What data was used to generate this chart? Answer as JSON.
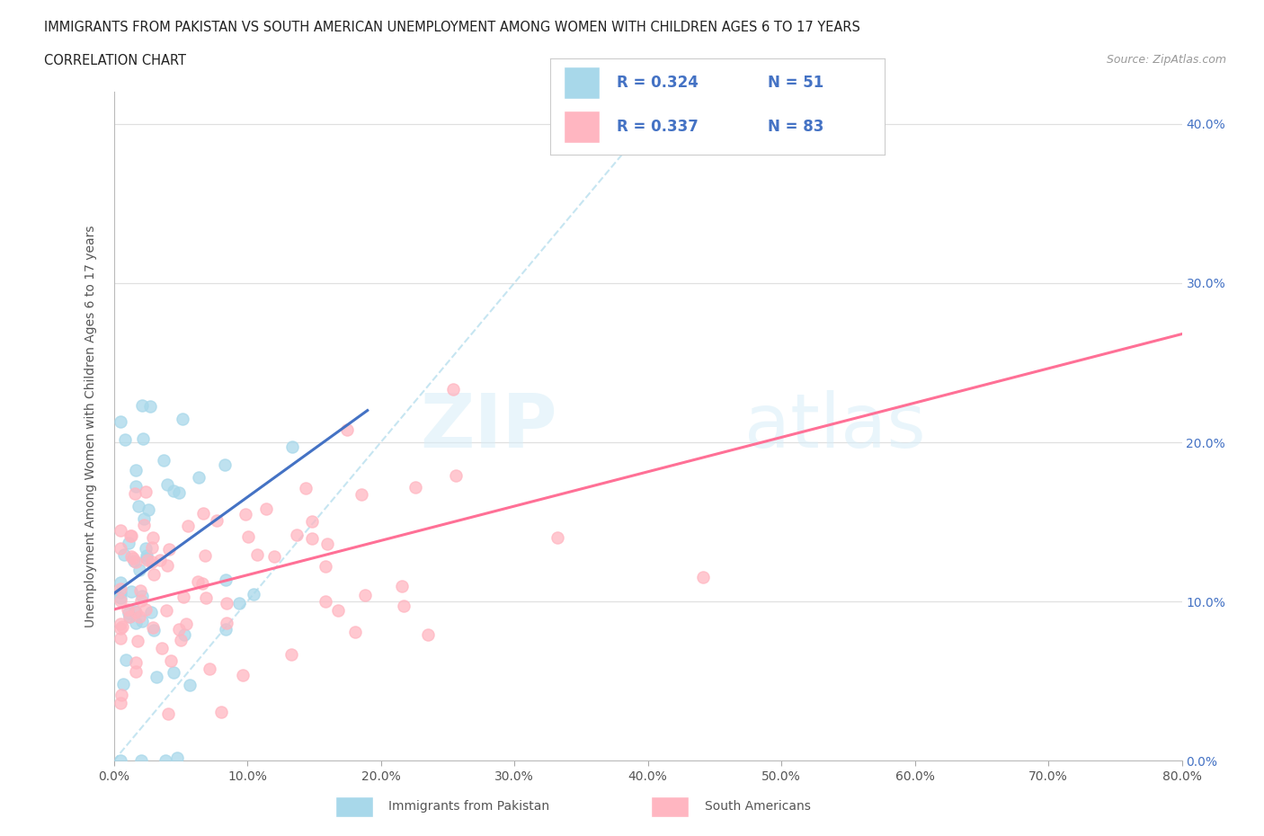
{
  "title_line1": "IMMIGRANTS FROM PAKISTAN VS SOUTH AMERICAN UNEMPLOYMENT AMONG WOMEN WITH CHILDREN AGES 6 TO 17 YEARS",
  "title_line2": "CORRELATION CHART",
  "source_text": "Source: ZipAtlas.com",
  "ylabel": "Unemployment Among Women with Children Ages 6 to 17 years",
  "xlim": [
    0.0,
    0.8
  ],
  "ylim": [
    0.0,
    0.42
  ],
  "x_ticks": [
    0.0,
    0.1,
    0.2,
    0.3,
    0.4,
    0.5,
    0.6,
    0.7,
    0.8
  ],
  "x_tick_labels": [
    "0.0%",
    "10.0%",
    "20.0%",
    "30.0%",
    "40.0%",
    "50.0%",
    "60.0%",
    "70.0%",
    "80.0%"
  ],
  "y_tick_vals": [
    0.0,
    0.1,
    0.2,
    0.3,
    0.4
  ],
  "y_tick_labels": [
    "0.0%",
    "10.0%",
    "20.0%",
    "30.0%",
    "40.0%"
  ],
  "color_pakistan_fill": "#a8d8ea",
  "color_south_fill": "#ffb6c1",
  "color_pakistan_trend": "#4472c4",
  "color_south_trend": "#ff7096",
  "color_dashed": "#a8d8ea",
  "legend_r1": "R = 0.324",
  "legend_n1": "N = 51",
  "legend_r2": "R = 0.337",
  "legend_n2": "N = 83",
  "legend_text_color": "#4472c4",
  "bottom_label1": "Immigrants from Pakistan",
  "bottom_label2": "South Americans",
  "R1": 0.324,
  "N1": 51,
  "R2": 0.337,
  "N2": 83
}
